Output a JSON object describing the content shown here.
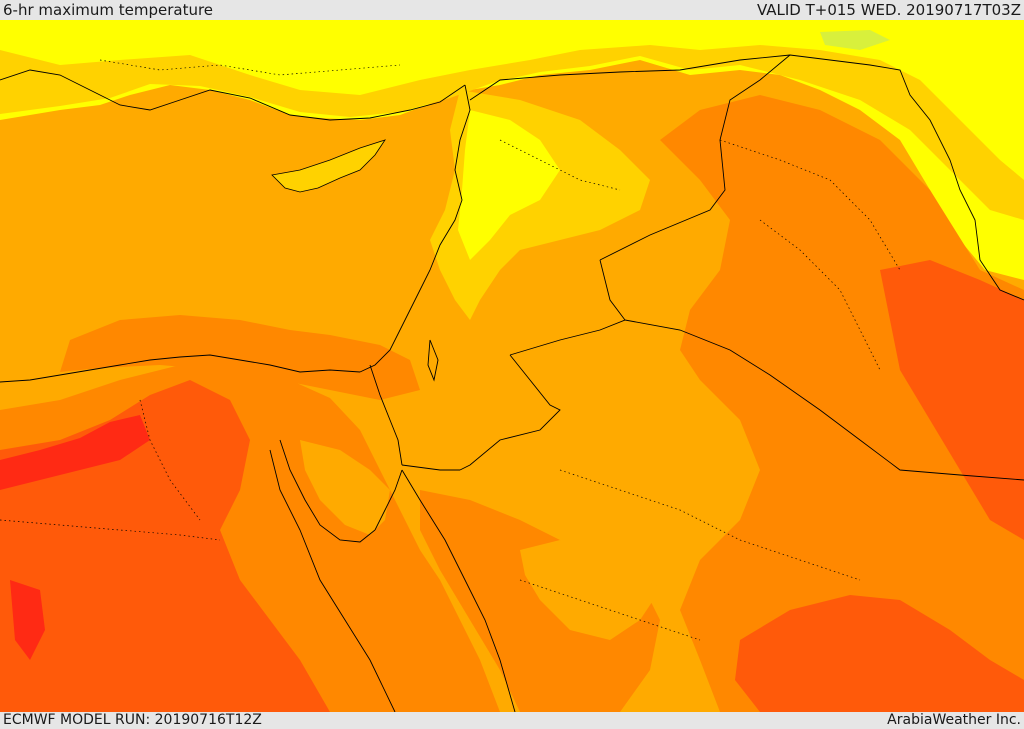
{
  "header": {
    "title": "6-hr maximum temperature",
    "valid": "VALID T+015 WED. 20190717T03Z"
  },
  "footer": {
    "model_run": "ECMWF MODEL RUN: 20190716T12Z",
    "provider": "ArabiaWeather Inc."
  },
  "map": {
    "subject": "6-hr maximum temperature",
    "colors": {
      "cool": "#e8f03a",
      "yellow": "#ffff00",
      "light_orange": "#ffd200",
      "orange": "#ffaa00",
      "dark_orange": "#ff8800",
      "red_orange": "#ff5a0a",
      "red": "#ff2a14"
    }
  }
}
